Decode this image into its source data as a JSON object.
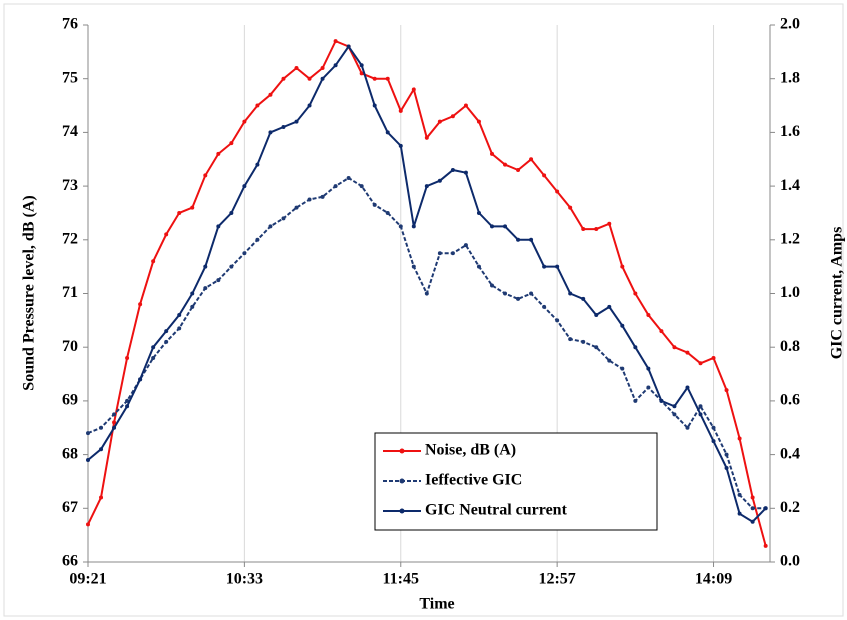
{
  "chart_data": {
    "type": "line",
    "x_label": "Time",
    "y_label": "Sound Pressure level, dB (A)",
    "y2_label": "GIC current, Amps",
    "x": [
      "09:21",
      "09:27",
      "09:33",
      "09:39",
      "09:45",
      "09:51",
      "09:57",
      "10:03",
      "10:09",
      "10:15",
      "10:21",
      "10:27",
      "10:33",
      "10:39",
      "10:45",
      "10:51",
      "10:57",
      "11:03",
      "11:09",
      "11:15",
      "11:21",
      "11:27",
      "11:33",
      "11:39",
      "11:45",
      "11:51",
      "11:57",
      "12:03",
      "12:09",
      "12:15",
      "12:21",
      "12:27",
      "12:33",
      "12:39",
      "12:45",
      "12:51",
      "12:57",
      "13:03",
      "13:09",
      "13:15",
      "13:21",
      "13:27",
      "13:33",
      "13:39",
      "13:45",
      "13:51",
      "13:57",
      "14:03",
      "14:09",
      "14:15",
      "14:21",
      "14:27",
      "14:33"
    ],
    "xlim": [
      "09:21",
      "14:35"
    ],
    "xticks": [
      "09:21",
      "10:33",
      "11:45",
      "12:57",
      "14:09"
    ],
    "ylim": [
      66,
      76
    ],
    "yticks": [
      66,
      67,
      68,
      69,
      70,
      71,
      72,
      73,
      74,
      75,
      76
    ],
    "y2lim": [
      0,
      2
    ],
    "y2ticks": [
      {
        "value": 0,
        "label": "0.0"
      },
      0.2,
      0.4,
      0.6,
      0.8,
      {
        "value": 1,
        "label": "1.0"
      },
      1.2,
      1.4,
      1.6,
      1.8,
      {
        "value": 2,
        "label": "2.0"
      }
    ],
    "grid": "x",
    "legend": "lower right",
    "series": [
      {
        "name": "Noise, dB (A)",
        "color": "#ee1111",
        "line_style": "solid",
        "values": [
          66.7,
          67.2,
          68.6,
          69.8,
          70.8,
          71.6,
          72.1,
          72.5,
          72.6,
          73.2,
          73.6,
          73.8,
          74.2,
          74.5,
          74.7,
          75.0,
          75.2,
          75.0,
          75.2,
          75.7,
          75.6,
          75.1,
          75.0,
          75.0,
          74.4,
          74.8,
          73.9,
          74.2,
          74.3,
          74.5,
          74.2,
          73.6,
          73.4,
          73.3,
          73.5,
          73.2,
          72.9,
          72.6,
          72.2,
          72.2,
          72.3,
          71.5,
          71.0,
          70.6,
          70.3,
          70.0,
          69.9,
          69.7,
          69.8,
          69.2,
          68.3,
          67.2,
          66.3
        ]
      },
      {
        "name": "Ieffective GIC",
        "color": "#1f3a73",
        "line_style": "dashed",
        "axis": "y2",
        "values": [
          0.48,
          0.5,
          0.55,
          0.6,
          0.68,
          0.76,
          0.82,
          0.87,
          0.95,
          1.02,
          1.05,
          1.1,
          1.15,
          1.2,
          1.25,
          1.28,
          1.32,
          1.35,
          1.36,
          1.4,
          1.43,
          1.4,
          1.33,
          1.3,
          1.25,
          1.1,
          1.0,
          1.15,
          1.15,
          1.18,
          1.1,
          1.03,
          1.0,
          0.98,
          1.0,
          0.95,
          0.9,
          0.83,
          0.82,
          0.8,
          0.75,
          0.72,
          0.6,
          0.65,
          0.6,
          0.55,
          0.5,
          0.58,
          0.5,
          0.4,
          0.25,
          0.2,
          0.2
        ]
      },
      {
        "name": "GIC Neutral current",
        "color": "#0d2a6b",
        "line_style": "solid",
        "axis": "y2",
        "values": [
          0.38,
          0.42,
          0.5,
          0.58,
          0.68,
          0.8,
          0.86,
          0.92,
          1.0,
          1.1,
          1.25,
          1.3,
          1.4,
          1.48,
          1.6,
          1.62,
          1.64,
          1.7,
          1.8,
          1.85,
          1.92,
          1.85,
          1.7,
          1.6,
          1.55,
          1.25,
          1.4,
          1.42,
          1.46,
          1.45,
          1.3,
          1.25,
          1.25,
          1.2,
          1.2,
          1.1,
          1.1,
          1.0,
          0.98,
          0.92,
          0.95,
          0.88,
          0.8,
          0.72,
          0.6,
          0.58,
          0.65,
          0.55,
          0.45,
          0.35,
          0.18,
          0.15,
          0.2
        ]
      }
    ]
  }
}
